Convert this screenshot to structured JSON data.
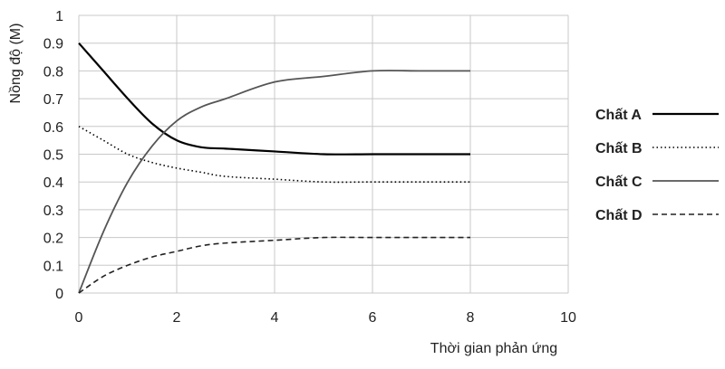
{
  "chart_data": {
    "type": "line",
    "title": "",
    "xlabel": "Thời gian phản ứng",
    "ylabel": "Nồng độ (M)",
    "xlim": [
      0,
      10
    ],
    "ylim": [
      0,
      1
    ],
    "xticks": [
      0,
      2,
      4,
      6,
      8,
      10
    ],
    "yticks": [
      0,
      0.1,
      0.2,
      0.3,
      0.4,
      0.5,
      0.6,
      0.7,
      0.8,
      0.9,
      1
    ],
    "grid": true,
    "legend_position": "right",
    "x": [
      0,
      0.5,
      1,
      1.5,
      2,
      2.5,
      3,
      4,
      5,
      6,
      7,
      8
    ],
    "series": [
      {
        "name": "Chất A",
        "style": "solid-thick",
        "color": "#000000",
        "values": [
          0.9,
          0.8,
          0.7,
          0.61,
          0.55,
          0.525,
          0.52,
          0.51,
          0.5,
          0.5,
          0.5,
          0.5
        ]
      },
      {
        "name": "Chất B",
        "style": "dotted",
        "color": "#000000",
        "values": [
          0.6,
          0.55,
          0.5,
          0.47,
          0.45,
          0.435,
          0.42,
          0.41,
          0.4,
          0.4,
          0.4,
          0.4
        ]
      },
      {
        "name": "Chất C",
        "style": "solid",
        "color": "#555555",
        "values": [
          0,
          0.22,
          0.4,
          0.53,
          0.62,
          0.67,
          0.7,
          0.76,
          0.78,
          0.8,
          0.8,
          0.8
        ]
      },
      {
        "name": "Chất D",
        "style": "dashed",
        "color": "#222222",
        "values": [
          0,
          0.06,
          0.1,
          0.13,
          0.15,
          0.17,
          0.18,
          0.19,
          0.2,
          0.2,
          0.2,
          0.2
        ]
      }
    ]
  }
}
